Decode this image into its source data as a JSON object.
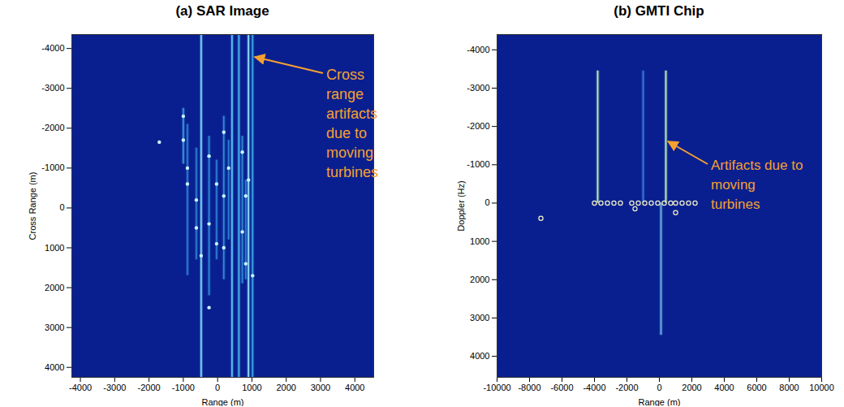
{
  "chart_data": [
    {
      "type": "image",
      "title": "(a) SAR Image",
      "x_label": "Range (m)",
      "y_label": "Cross Range (m)",
      "xlim": [
        -4250,
        4550
      ],
      "ylim": [
        4250,
        -4350
      ],
      "xticks": [
        -4000,
        -3000,
        -2000,
        -1000,
        0,
        1000,
        2000,
        3000,
        4000
      ],
      "yticks": [
        -4000,
        -3000,
        -2000,
        -1000,
        0,
        1000,
        2000,
        3000,
        4000
      ],
      "grid": false,
      "streaks": {
        "x": [
          -480,
          420,
          620,
          900,
          1020,
          -1000,
          -880,
          -620,
          -250,
          -30,
          180,
          320,
          720,
          820
        ],
        "y1": [
          -4350,
          -4350,
          -4350,
          -4350,
          -4350,
          -2500,
          -2100,
          -1500,
          -1800,
          -1200,
          -2300,
          -1700,
          -1800,
          -700
        ],
        "y2": [
          4250,
          4250,
          4250,
          4250,
          4250,
          -1100,
          1700,
          1300,
          2200,
          1300,
          1800,
          800,
          1900,
          1800
        ],
        "colors": [
          "#7fd8ff",
          "#5ec8f5",
          "#4ab8f0",
          "#8fe0ff",
          "#3aa8e8",
          "#3a9ae0",
          "#2a80d0",
          "#2a80d0",
          "#2f8ad8",
          "#2a80d0",
          "#2f8ad8",
          "#2a80d0",
          "#2f8ad8",
          "#2a80d0"
        ]
      },
      "points": {
        "color": "#c8f2ff",
        "marker": "dot",
        "x": [
          -1000,
          -1000,
          -880,
          -880,
          -620,
          -620,
          -250,
          -250,
          -30,
          -30,
          180,
          180,
          180,
          320,
          720,
          720,
          820,
          820,
          900,
          1020,
          -480,
          -1700,
          -250
        ],
        "y": [
          -2300,
          -1700,
          -1000,
          -600,
          -200,
          500,
          -1300,
          400,
          -600,
          900,
          -1900,
          -300,
          1000,
          -1000,
          -1400,
          600,
          -300,
          1400,
          -700,
          1700,
          1200,
          -1650,
          2500
        ]
      },
      "annotation": {
        "text": [
          "Cross",
          "range",
          "artifacts",
          "due to",
          "moving",
          "turbines"
        ],
        "color": "#f5a030"
      }
    },
    {
      "type": "image",
      "title": "(b) GMTI Chip",
      "x_label": "Range (m)",
      "y_label": "Doppler (Hz)",
      "xlim": [
        -10000,
        10000
      ],
      "ylim": [
        4550,
        -4400
      ],
      "xticks": [
        -10000,
        -8000,
        -6000,
        -4000,
        -2000,
        0,
        2000,
        4000,
        6000,
        8000,
        10000
      ],
      "yticks": [
        -4000,
        -3000,
        -2000,
        -1000,
        0,
        1000,
        2000,
        3000,
        4000
      ],
      "grid": false,
      "streaks": {
        "x": [
          -3800,
          -1000,
          400,
          100
        ],
        "y1": [
          -3450,
          -3450,
          -3450,
          0
        ],
        "y2": [
          0,
          0,
          0,
          3450
        ],
        "colors": [
          "#b8f5b0",
          "#3a7ad8",
          "#b8f5b0",
          "#6fb8e8"
        ]
      },
      "points": {
        "color": "#f4f4c8",
        "marker": "circle",
        "x": [
          -4000,
          -3600,
          -3200,
          -2800,
          -2400,
          -1700,
          -1300,
          -900,
          -500,
          -100,
          300,
          700,
          1000,
          1400,
          1800,
          2200,
          -1500,
          1000,
          -7300
        ],
        "y": [
          0,
          0,
          0,
          0,
          0,
          0,
          0,
          0,
          0,
          0,
          0,
          0,
          0,
          0,
          0,
          0,
          150,
          250,
          400
        ]
      },
      "annotation": {
        "text": [
          "Artifacts due to",
          "moving",
          "turbines"
        ],
        "color": "#f5a030"
      }
    }
  ]
}
